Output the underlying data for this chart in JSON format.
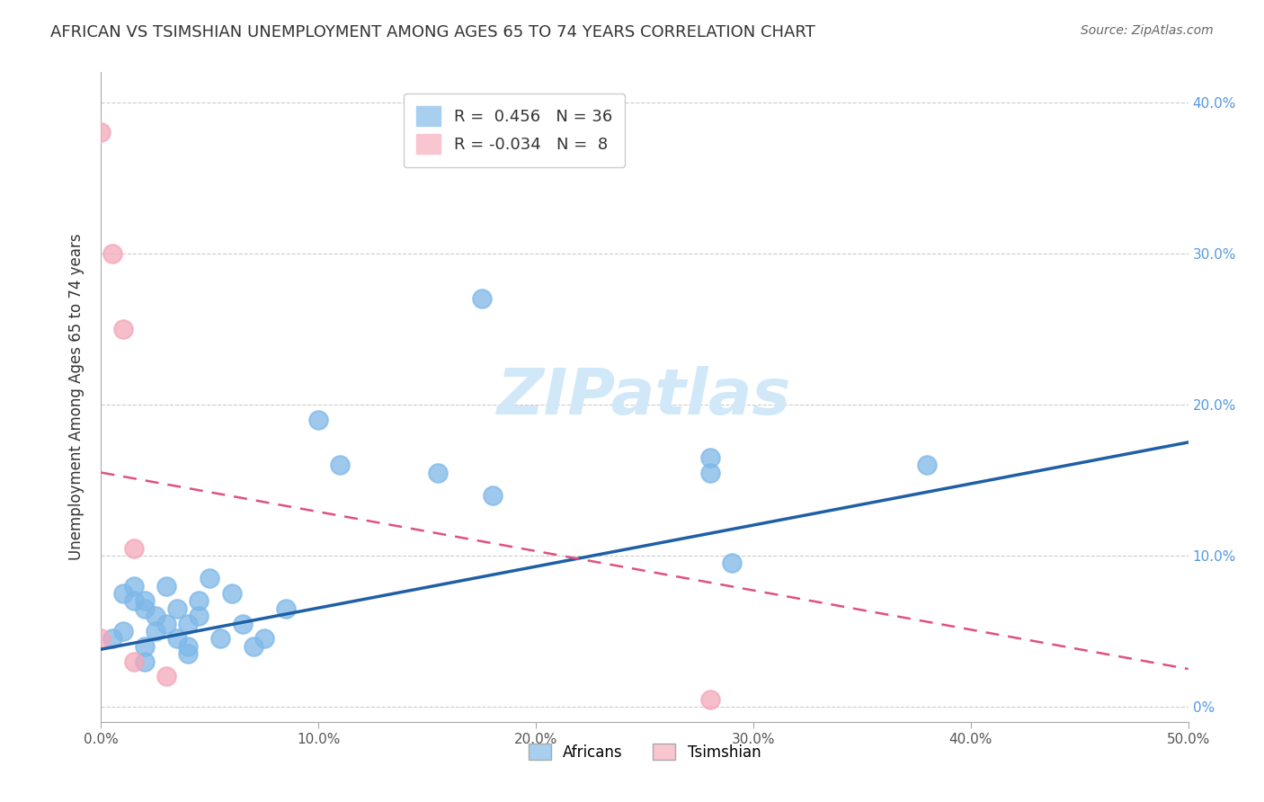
{
  "title": "AFRICAN VS TSIMSHIAN UNEMPLOYMENT AMONG AGES 65 TO 74 YEARS CORRELATION CHART",
  "source": "Source: ZipAtlas.com",
  "xlabel": "",
  "ylabel": "Unemployment Among Ages 65 to 74 years",
  "xlim": [
    0.0,
    0.5
  ],
  "ylim": [
    -0.01,
    0.42
  ],
  "xticks": [
    0.0,
    0.1,
    0.2,
    0.3,
    0.4,
    0.5
  ],
  "xticklabels": [
    "0.0%",
    "10.0%",
    "20.0%",
    "30.0%",
    "40.0%",
    "50.0%"
  ],
  "yticks": [
    0.0,
    0.1,
    0.2,
    0.3,
    0.4
  ],
  "yticklabels_right": [
    "0%",
    "10.0%",
    "20.0%",
    "30.0%",
    "40.0%"
  ],
  "african_R": "0.456",
  "african_N": "36",
  "tsimshian_R": "-0.034",
  "tsimshian_N": "8",
  "african_color": "#7eb8e8",
  "tsimshian_color": "#f4a7b9",
  "african_line_color": "#1f5fa6",
  "tsimshian_line_color": "#e05080",
  "legend_african_fill": "#a8cff0",
  "legend_tsimshian_fill": "#f9c5d0",
  "background_color": "#ffffff",
  "grid_color": "#cccccc",
  "title_color": "#333333",
  "watermark_color": "#d0e8f8",
  "africans_x": [
    0.005,
    0.01,
    0.01,
    0.015,
    0.015,
    0.02,
    0.02,
    0.02,
    0.02,
    0.025,
    0.025,
    0.03,
    0.03,
    0.035,
    0.035,
    0.04,
    0.04,
    0.04,
    0.045,
    0.045,
    0.05,
    0.055,
    0.06,
    0.065,
    0.07,
    0.075,
    0.085,
    0.1,
    0.11,
    0.155,
    0.175,
    0.18,
    0.28,
    0.28,
    0.29,
    0.38
  ],
  "africans_y": [
    0.045,
    0.05,
    0.075,
    0.08,
    0.07,
    0.07,
    0.065,
    0.04,
    0.03,
    0.06,
    0.05,
    0.08,
    0.055,
    0.045,
    0.065,
    0.055,
    0.04,
    0.035,
    0.07,
    0.06,
    0.085,
    0.045,
    0.075,
    0.055,
    0.04,
    0.045,
    0.065,
    0.19,
    0.16,
    0.155,
    0.27,
    0.14,
    0.155,
    0.165,
    0.095,
    0.16
  ],
  "tsimshian_x": [
    0.0,
    0.0,
    0.005,
    0.01,
    0.015,
    0.015,
    0.03,
    0.28
  ],
  "tsimshian_y": [
    0.045,
    0.38,
    0.3,
    0.25,
    0.105,
    0.03,
    0.02,
    0.005
  ],
  "african_trendline_x": [
    0.0,
    0.5
  ],
  "african_trendline_y": [
    0.038,
    0.175
  ],
  "tsimshian_trendline_x": [
    0.0,
    0.5
  ],
  "tsimshian_trendline_y": [
    0.155,
    0.025
  ]
}
